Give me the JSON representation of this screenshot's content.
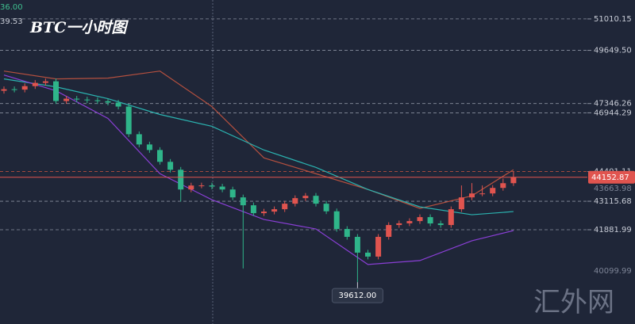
{
  "chart_data": {
    "type": "candlestick",
    "title": "BTC一小时图",
    "corner_labels": [
      "36.00",
      "39.53"
    ],
    "watermark": "汇外网",
    "ylim": [
      37800,
      51830
    ],
    "yticks": [
      51010.15,
      {
        "value": 49649.5,
        "label": "49649.50"
      },
      47346.26,
      46944.29,
      44401.11,
      43115.68,
      41881.99
    ],
    "axis_labels": [
      43663.98,
      40099.99
    ],
    "last_price": 44152.87,
    "low_marker": {
      "value": 39612,
      "label": "39612.00"
    },
    "up_color": "#e0544f",
    "down_color": "#2fb58a",
    "open": [
      47900,
      47967,
      47950,
      48100,
      48241,
      48309,
      47454,
      47557,
      47520,
      47488,
      47450,
      47386,
      47215,
      46018,
      45574,
      45334,
      44822,
      44480,
      43625,
      43796,
      43800,
      43750,
      43625,
      43283,
      42941,
      42599,
      42668,
      42770,
      43010,
      43250,
      43351,
      43010,
      42680,
      41915,
      41574,
      40890,
      40719,
      41574,
      42086,
      42160,
      42257,
      42428,
      42155,
      42086,
      42770,
      43283,
      43454,
      43454,
      43693,
      43898
    ],
    "high": [
      48087,
      48087,
      48220,
      48361,
      48429,
      48429,
      47677,
      47677,
      47640,
      47608,
      47570,
      47506,
      47335,
      46138,
      45694,
      45454,
      44942,
      44600,
      43916,
      43920,
      43920,
      43870,
      43745,
      43403,
      43061,
      42788,
      42890,
      43130,
      43370,
      43471,
      43471,
      43130,
      42800,
      42035,
      41694,
      41010,
      41694,
      42206,
      42280,
      42377,
      42548,
      42548,
      42275,
      42890,
      43800,
      43900,
      43800,
      43813,
      44100,
      44401.11
    ],
    "low": [
      47780,
      47830,
      47830,
      47980,
      48121,
      47334,
      47334,
      47400,
      47368,
      47330,
      47266,
      47095,
      45898,
      45454,
      45214,
      44702,
      44360,
      43100,
      43505,
      43676,
      43630,
      43505,
      43163,
      40206,
      42479,
      42479,
      42548,
      42650,
      42890,
      43130,
      42890,
      42560,
      41795,
      41454,
      39612,
      40599,
      40599,
      41454,
      41966,
      42040,
      42137,
      42035,
      41966,
      41966,
      42650,
      43163,
      43334,
      43334,
      43573,
      43778
    ],
    "close": [
      47967,
      47950,
      48100,
      48241,
      48309,
      47454,
      47557,
      47520,
      47488,
      47450,
      47386,
      47215,
      46018,
      45574,
      45334,
      44822,
      44480,
      43625,
      43796,
      43800,
      43750,
      43625,
      43283,
      42941,
      42599,
      42668,
      42770,
      43010,
      43250,
      43351,
      43010,
      42680,
      41915,
      41574,
      40890,
      40719,
      41574,
      42086,
      42160,
      42257,
      42428,
      42155,
      42086,
      42770,
      43283,
      43454,
      43454,
      43693,
      43898,
      44152.87
    ],
    "lines": [
      {
        "color": "#b5503f",
        "x": [
          0,
          5,
          10,
          15,
          20,
          25,
          30,
          35,
          40,
          45,
          49
        ],
        "values": [
          48753,
          48412,
          48446,
          48753,
          47215,
          44993,
          44309,
          43625,
          42804,
          43351,
          44480
        ]
      },
      {
        "color": "#2bb3b0",
        "x": [
          0,
          5,
          10,
          15,
          20,
          25,
          30,
          35,
          40,
          45,
          49
        ],
        "values": [
          48412,
          48070,
          47557,
          46873,
          46360,
          45334,
          44582,
          43625,
          42873,
          42531,
          42668
        ]
      },
      {
        "color": "#8a3fd6",
        "x": [
          0,
          5,
          10,
          15,
          20,
          25,
          30,
          35,
          40,
          45,
          49
        ],
        "values": [
          48583,
          47899,
          46702,
          44309,
          43180,
          42326,
          41915,
          40377,
          40548,
          41403,
          41847
        ]
      }
    ]
  }
}
